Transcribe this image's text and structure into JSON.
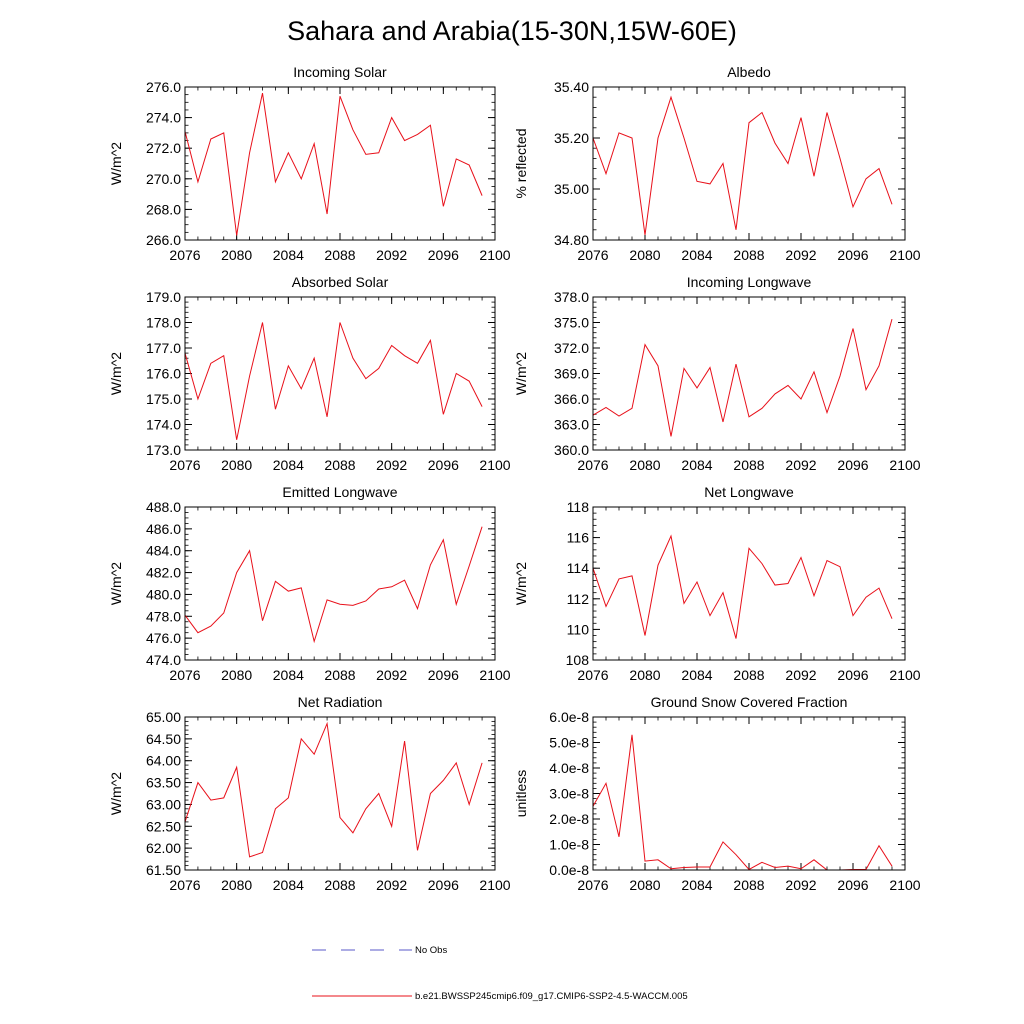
{
  "figure": {
    "title": "Sahara and Arabia(15-30N,15W-60E)",
    "legend": [
      {
        "label": "No Obs",
        "color": "#5a5ac8",
        "style": "dashed"
      },
      {
        "label": "b.e21.BWSSP245cmip6.f09_g17.CMIP6-SSP2-4.5-WACCM.005",
        "color": "#e8101a",
        "style": "solid"
      }
    ]
  },
  "chart_data": [
    {
      "type": "line",
      "title": "Incoming Solar",
      "ylabel": "W/m^2",
      "xlim": [
        2076,
        2100
      ],
      "ylim": [
        266,
        276
      ],
      "xticks": [
        2076,
        2080,
        2084,
        2088,
        2092,
        2096,
        2100
      ],
      "xtick_labels": [
        "2076",
        "2080",
        "2084",
        "2088",
        "2092",
        "2096",
        "2100"
      ],
      "yticks": [
        266,
        268,
        270,
        272,
        274,
        276
      ],
      "ytick_labels": [
        "266.0",
        "268.0",
        "270.0",
        "272.0",
        "274.0",
        "276.0"
      ],
      "x_minor_step": 1,
      "y_minor_step": 0.5,
      "series": [
        {
          "color": "#e8101a",
          "x": [
            2076,
            2077,
            2078,
            2079,
            2080,
            2081,
            2082,
            2083,
            2084,
            2085,
            2086,
            2087,
            2088,
            2089,
            2090,
            2091,
            2092,
            2093,
            2094,
            2095,
            2096,
            2097,
            2098,
            2099
          ],
          "values": [
            273.1,
            269.8,
            272.6,
            273.0,
            266.3,
            271.7,
            275.6,
            269.8,
            271.7,
            270.0,
            272.3,
            267.7,
            275.4,
            273.2,
            271.6,
            271.7,
            274.0,
            272.5,
            272.9,
            273.5,
            268.2,
            271.3,
            270.9,
            268.9
          ]
        }
      ]
    },
    {
      "type": "line",
      "title": "Albedo",
      "ylabel": "% reflected",
      "xlim": [
        2076,
        2100
      ],
      "ylim": [
        34.8,
        35.4
      ],
      "xticks": [
        2076,
        2080,
        2084,
        2088,
        2092,
        2096,
        2100
      ],
      "xtick_labels": [
        "2076",
        "2080",
        "2084",
        "2088",
        "2092",
        "2096",
        "2100"
      ],
      "yticks": [
        34.8,
        35.0,
        35.2,
        35.4
      ],
      "ytick_labels": [
        "34.80",
        "35.00",
        "35.20",
        "35.40"
      ],
      "x_minor_step": 1,
      "y_minor_step": 0.04,
      "series": [
        {
          "color": "#e8101a",
          "x": [
            2076,
            2077,
            2078,
            2079,
            2080,
            2081,
            2082,
            2083,
            2084,
            2085,
            2086,
            2087,
            2088,
            2089,
            2090,
            2091,
            2092,
            2093,
            2094,
            2095,
            2096,
            2097,
            2098,
            2099
          ],
          "values": [
            35.2,
            35.06,
            35.22,
            35.2,
            34.82,
            35.2,
            35.36,
            35.2,
            35.03,
            35.02,
            35.1,
            34.84,
            35.26,
            35.3,
            35.18,
            35.1,
            35.28,
            35.05,
            35.3,
            35.12,
            34.93,
            35.04,
            35.08,
            34.94
          ]
        }
      ]
    },
    {
      "type": "line",
      "title": "Absorbed Solar",
      "ylabel": "W/m^2",
      "xlim": [
        2076,
        2100
      ],
      "ylim": [
        173,
        179
      ],
      "xticks": [
        2076,
        2080,
        2084,
        2088,
        2092,
        2096,
        2100
      ],
      "xtick_labels": [
        "2076",
        "2080",
        "2084",
        "2088",
        "2092",
        "2096",
        "2100"
      ],
      "yticks": [
        173,
        174,
        175,
        176,
        177,
        178,
        179
      ],
      "ytick_labels": [
        "173.0",
        "174.0",
        "175.0",
        "176.0",
        "177.0",
        "178.0",
        "179.0"
      ],
      "x_minor_step": 1,
      "y_minor_step": 0.2,
      "series": [
        {
          "color": "#e8101a",
          "x": [
            2076,
            2077,
            2078,
            2079,
            2080,
            2081,
            2082,
            2083,
            2084,
            2085,
            2086,
            2087,
            2088,
            2089,
            2090,
            2091,
            2092,
            2093,
            2094,
            2095,
            2096,
            2097,
            2098,
            2099
          ],
          "values": [
            176.8,
            175.0,
            176.4,
            176.7,
            173.4,
            175.9,
            178.0,
            174.6,
            176.3,
            175.4,
            176.6,
            174.3,
            178.0,
            176.6,
            175.8,
            176.2,
            177.1,
            176.7,
            176.4,
            177.3,
            174.4,
            176.0,
            175.7,
            174.7
          ]
        }
      ]
    },
    {
      "type": "line",
      "title": "Incoming Longwave",
      "ylabel": "W/m^2",
      "xlim": [
        2076,
        2100
      ],
      "ylim": [
        360,
        378
      ],
      "xticks": [
        2076,
        2080,
        2084,
        2088,
        2092,
        2096,
        2100
      ],
      "xtick_labels": [
        "2076",
        "2080",
        "2084",
        "2088",
        "2092",
        "2096",
        "2100"
      ],
      "yticks": [
        360,
        363,
        366,
        369,
        372,
        375,
        378
      ],
      "ytick_labels": [
        "360.0",
        "363.0",
        "366.0",
        "369.0",
        "372.0",
        "375.0",
        "378.0"
      ],
      "x_minor_step": 1,
      "y_minor_step": 0.6,
      "series": [
        {
          "color": "#e8101a",
          "x": [
            2076,
            2077,
            2078,
            2079,
            2080,
            2081,
            2082,
            2083,
            2084,
            2085,
            2086,
            2087,
            2088,
            2089,
            2090,
            2091,
            2092,
            2093,
            2094,
            2095,
            2096,
            2097,
            2098,
            2099
          ],
          "values": [
            364.1,
            365.0,
            364.0,
            364.9,
            372.4,
            369.9,
            361.6,
            369.6,
            367.3,
            369.7,
            363.3,
            370.1,
            363.9,
            364.9,
            366.6,
            367.6,
            366.0,
            369.2,
            364.4,
            368.7,
            374.3,
            367.1,
            369.9,
            375.4
          ]
        }
      ]
    },
    {
      "type": "line",
      "title": "Emitted Longwave",
      "ylabel": "W/m^2",
      "xlim": [
        2076,
        2100
      ],
      "ylim": [
        474,
        488
      ],
      "xticks": [
        2076,
        2080,
        2084,
        2088,
        2092,
        2096,
        2100
      ],
      "xtick_labels": [
        "2076",
        "2080",
        "2084",
        "2088",
        "2092",
        "2096",
        "2100"
      ],
      "yticks": [
        474,
        476,
        478,
        480,
        482,
        484,
        486,
        488
      ],
      "ytick_labels": [
        "474.0",
        "476.0",
        "478.0",
        "480.0",
        "482.0",
        "484.0",
        "486.0",
        "488.0"
      ],
      "x_minor_step": 1,
      "y_minor_step": 0.5,
      "series": [
        {
          "color": "#e8101a",
          "x": [
            2076,
            2077,
            2078,
            2079,
            2080,
            2081,
            2082,
            2083,
            2084,
            2085,
            2086,
            2087,
            2088,
            2089,
            2090,
            2091,
            2092,
            2093,
            2094,
            2095,
            2096,
            2097,
            2098,
            2099
          ],
          "values": [
            478.1,
            476.5,
            477.1,
            478.3,
            482.0,
            484.0,
            477.6,
            481.2,
            480.3,
            480.6,
            475.7,
            479.5,
            479.1,
            479.0,
            479.4,
            480.5,
            480.7,
            481.3,
            478.7,
            482.7,
            485.0,
            479.1,
            482.6,
            486.2
          ]
        }
      ]
    },
    {
      "type": "line",
      "title": "Net Longwave",
      "ylabel": "W/m^2",
      "xlim": [
        2076,
        2100
      ],
      "ylim": [
        108,
        118
      ],
      "xticks": [
        2076,
        2080,
        2084,
        2088,
        2092,
        2096,
        2100
      ],
      "xtick_labels": [
        "2076",
        "2080",
        "2084",
        "2088",
        "2092",
        "2096",
        "2100"
      ],
      "yticks": [
        108,
        110,
        112,
        114,
        116,
        118
      ],
      "ytick_labels": [
        "108",
        "110",
        "112",
        "114",
        "116",
        "118"
      ],
      "x_minor_step": 1,
      "y_minor_step": 0.4,
      "series": [
        {
          "color": "#e8101a",
          "x": [
            2076,
            2077,
            2078,
            2079,
            2080,
            2081,
            2082,
            2083,
            2084,
            2085,
            2086,
            2087,
            2088,
            2089,
            2090,
            2091,
            2092,
            2093,
            2094,
            2095,
            2096,
            2097,
            2098,
            2099
          ],
          "values": [
            114.0,
            111.5,
            113.3,
            113.5,
            109.6,
            114.2,
            116.1,
            111.7,
            113.1,
            110.9,
            112.4,
            109.4,
            115.3,
            114.3,
            112.9,
            113.0,
            114.7,
            112.2,
            114.5,
            114.1,
            110.9,
            112.1,
            112.7,
            110.7
          ]
        }
      ]
    },
    {
      "type": "line",
      "title": "Net Radiation",
      "ylabel": "W/m^2",
      "xlim": [
        2076,
        2100
      ],
      "ylim": [
        61.5,
        65.0
      ],
      "xticks": [
        2076,
        2080,
        2084,
        2088,
        2092,
        2096,
        2100
      ],
      "xtick_labels": [
        "2076",
        "2080",
        "2084",
        "2088",
        "2092",
        "2096",
        "2100"
      ],
      "yticks": [
        61.5,
        62.0,
        62.5,
        63.0,
        63.5,
        64.0,
        64.5,
        65.0
      ],
      "ytick_labels": [
        "61.50",
        "62.00",
        "62.50",
        "63.00",
        "63.50",
        "64.00",
        "64.50",
        "65.00"
      ],
      "x_minor_step": 1,
      "y_minor_step": 0.1,
      "series": [
        {
          "color": "#e8101a",
          "x": [
            2076,
            2077,
            2078,
            2079,
            2080,
            2081,
            2082,
            2083,
            2084,
            2085,
            2086,
            2087,
            2088,
            2089,
            2090,
            2091,
            2092,
            2093,
            2094,
            2095,
            2096,
            2097,
            2098,
            2099
          ],
          "values": [
            62.6,
            63.5,
            63.1,
            63.15,
            63.85,
            61.8,
            61.9,
            62.9,
            63.15,
            64.5,
            64.15,
            64.85,
            62.7,
            62.35,
            62.9,
            63.25,
            62.5,
            64.45,
            61.95,
            63.25,
            63.55,
            63.95,
            63.0,
            63.95
          ]
        }
      ]
    },
    {
      "type": "line",
      "title": "Ground Snow Covered Fraction",
      "ylabel": "unitless",
      "xlim": [
        2076,
        2100
      ],
      "ylim": [
        0,
        6e-08
      ],
      "xticks": [
        2076,
        2080,
        2084,
        2088,
        2092,
        2096,
        2100
      ],
      "xtick_labels": [
        "2076",
        "2080",
        "2084",
        "2088",
        "2092",
        "2096",
        "2100"
      ],
      "yticks": [
        0,
        1e-08,
        2e-08,
        3e-08,
        4e-08,
        5e-08,
        6e-08
      ],
      "ytick_labels": [
        "0.0e-8",
        "1.0e-8",
        "2.0e-8",
        "3.0e-8",
        "4.0e-8",
        "5.0e-8",
        "6.0e-8"
      ],
      "x_minor_step": 1,
      "y_minor_step": 2e-09,
      "series": [
        {
          "color": "#e8101a",
          "x": [
            2076,
            2077,
            2078,
            2079,
            2080,
            2081,
            2082,
            2083,
            2084,
            2085,
            2086,
            2087,
            2088,
            2089,
            2090,
            2091,
            2092,
            2093,
            2094,
            2095,
            2096,
            2097,
            2098,
            2099
          ],
          "values": [
            2.5e-08,
            3.4e-08,
            1.3e-08,
            5.3e-08,
            3.5e-09,
            4e-09,
            5e-10,
            1e-09,
            1.2e-09,
            1.2e-09,
            1.1e-08,
            6e-09,
            2e-10,
            3e-09,
            1e-09,
            1.5e-09,
            5e-10,
            4e-09,
            0.0,
            0.0,
            2e-10,
            2e-10,
            9.5e-09,
            1.5e-09
          ]
        }
      ]
    }
  ]
}
